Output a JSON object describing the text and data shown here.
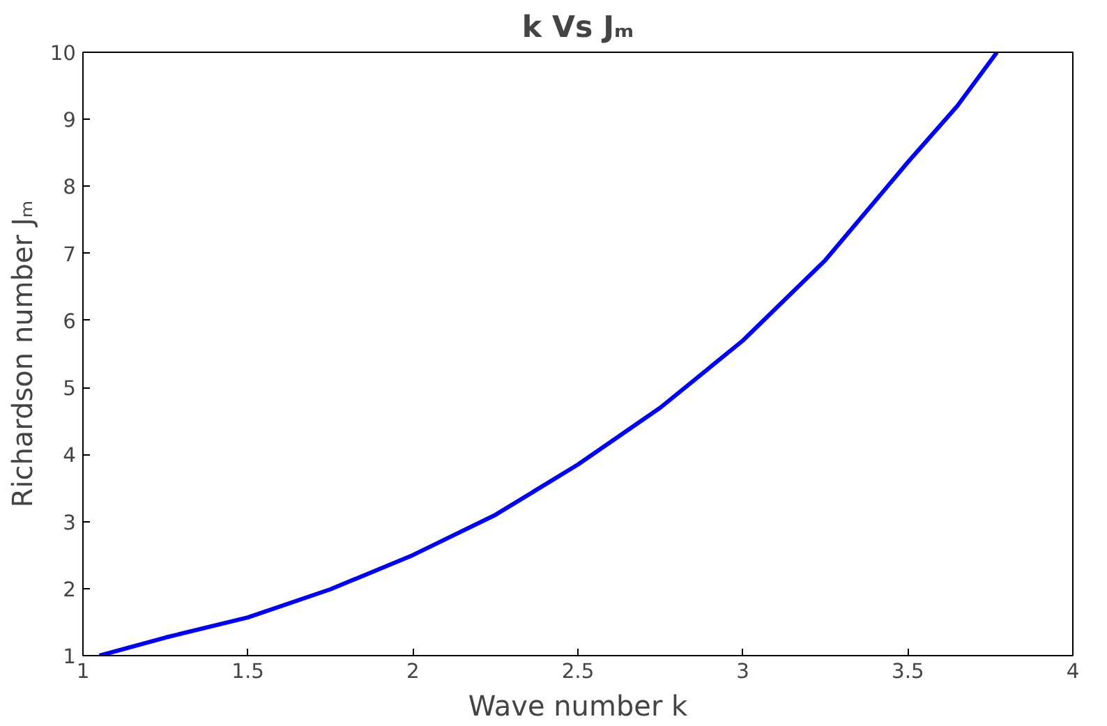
{
  "chart_data": {
    "type": "line",
    "title": "k Vs Jₘ",
    "xlabel": "Wave number k",
    "ylabel": "Richardson number Jₘ",
    "x": [
      1.05,
      1.25,
      1.5,
      1.75,
      2.0,
      2.25,
      2.5,
      2.75,
      3.0,
      3.25,
      3.5,
      3.65,
      3.77
    ],
    "series": [
      {
        "color": "#0000ff",
        "values": [
          1.0,
          1.27,
          1.57,
          1.99,
          2.5,
          3.1,
          3.85,
          4.7,
          5.7,
          6.9,
          8.36,
          9.2,
          10.0
        ]
      }
    ],
    "xlim": [
      1,
      4
    ],
    "ylim": [
      1,
      10
    ],
    "xticks": [
      1,
      1.5,
      2,
      2.5,
      3,
      3.5,
      4
    ],
    "yticks": [
      1,
      2,
      3,
      4,
      5,
      6,
      7,
      8,
      9,
      10
    ],
    "line_style": "solid"
  }
}
